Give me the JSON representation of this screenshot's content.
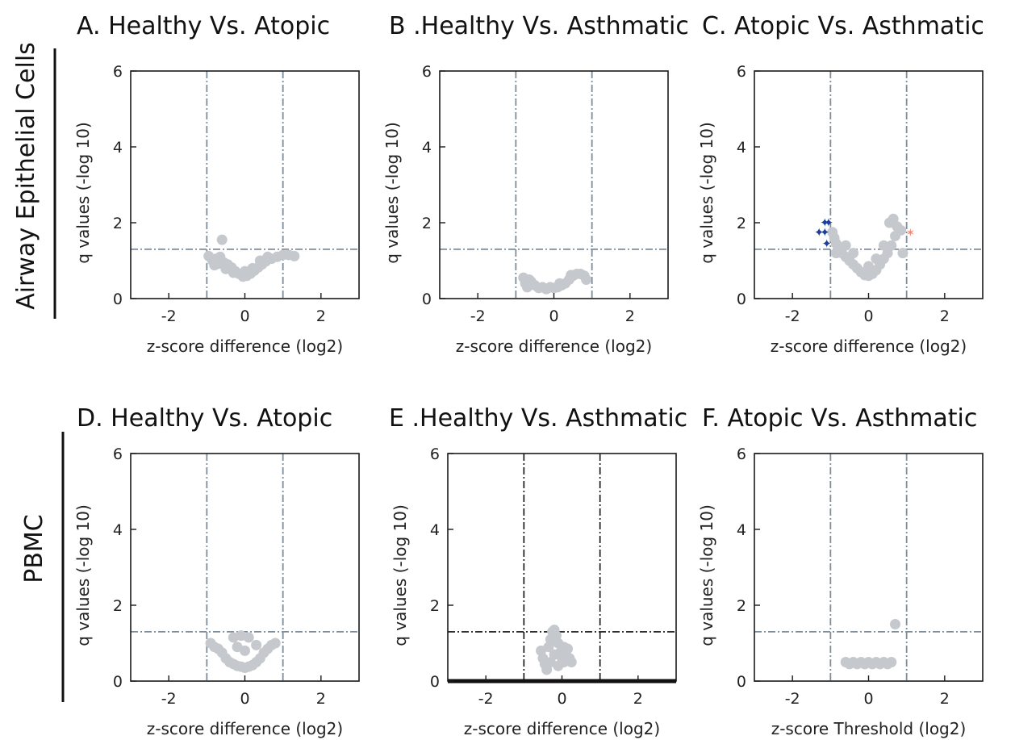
{
  "row_labels": [
    "Airway Epithelial Cells",
    "PBMC"
  ],
  "colors": {
    "point_ns": "#c5c9ce",
    "point_down": "#1f3d9a",
    "point_up": "#f08a74",
    "threshold_line": "#7f8c99",
    "threshold_line_dark": "#111111"
  },
  "chart_data": [
    {
      "type": "scatter",
      "title": "A. Healthy Vs. Atopic",
      "xlabel": "z-score difference (log2)",
      "ylabel": "q values (-log 10)",
      "xlim": [
        -3,
        3
      ],
      "ylim": [
        0,
        6
      ],
      "xticks": [
        "-2",
        "0",
        "2"
      ],
      "yticks": [
        "0",
        "2",
        "4",
        "6"
      ],
      "thresholds": {
        "x": [
          -1,
          1
        ],
        "y": 1.3
      },
      "points": [
        {
          "x": -0.95,
          "y": 1.12
        },
        {
          "x": -0.85,
          "y": 1.0
        },
        {
          "x": -0.75,
          "y": 1.05
        },
        {
          "x": -0.65,
          "y": 1.1
        },
        {
          "x": -0.6,
          "y": 1.55
        },
        {
          "x": -0.55,
          "y": 0.95
        },
        {
          "x": -0.45,
          "y": 0.9
        },
        {
          "x": -0.35,
          "y": 0.82
        },
        {
          "x": -0.25,
          "y": 0.72
        },
        {
          "x": -0.15,
          "y": 0.65
        },
        {
          "x": -0.05,
          "y": 0.58
        },
        {
          "x": 0.05,
          "y": 0.6
        },
        {
          "x": 0.15,
          "y": 0.66
        },
        {
          "x": 0.25,
          "y": 0.74
        },
        {
          "x": 0.35,
          "y": 0.82
        },
        {
          "x": 0.45,
          "y": 0.9
        },
        {
          "x": 0.55,
          "y": 0.98
        },
        {
          "x": 0.7,
          "y": 1.05
        },
        {
          "x": 0.85,
          "y": 1.1
        },
        {
          "x": 1.0,
          "y": 1.15
        },
        {
          "x": 1.15,
          "y": 1.15
        },
        {
          "x": 1.3,
          "y": 1.12
        },
        {
          "x": -0.8,
          "y": 0.88
        },
        {
          "x": -0.5,
          "y": 0.78
        },
        {
          "x": -0.3,
          "y": 0.68
        },
        {
          "x": 0.0,
          "y": 0.72
        },
        {
          "x": 0.2,
          "y": 0.8
        },
        {
          "x": 0.4,
          "y": 1.0
        },
        {
          "x": 0.6,
          "y": 1.1
        },
        {
          "x": -0.7,
          "y": 0.92
        }
      ]
    },
    {
      "type": "scatter",
      "title": "B .Healthy Vs. Asthmatic",
      "xlabel": "z-score difference (log2)",
      "ylabel": "q values (-log 10)",
      "xlim": [
        -3,
        3
      ],
      "ylim": [
        0,
        6
      ],
      "xticks": [
        "-2",
        "0",
        "2"
      ],
      "yticks": [
        "0",
        "2",
        "4",
        "6"
      ],
      "thresholds": {
        "x": [
          -1,
          1
        ],
        "y": 1.3
      },
      "points": [
        {
          "x": -0.8,
          "y": 0.55
        },
        {
          "x": -0.75,
          "y": 0.4
        },
        {
          "x": -0.7,
          "y": 0.3
        },
        {
          "x": -0.6,
          "y": 0.45
        },
        {
          "x": -0.5,
          "y": 0.35
        },
        {
          "x": -0.4,
          "y": 0.28
        },
        {
          "x": -0.3,
          "y": 0.3
        },
        {
          "x": -0.2,
          "y": 0.25
        },
        {
          "x": -0.1,
          "y": 0.3
        },
        {
          "x": 0.0,
          "y": 0.28
        },
        {
          "x": 0.1,
          "y": 0.3
        },
        {
          "x": 0.2,
          "y": 0.35
        },
        {
          "x": 0.3,
          "y": 0.4
        },
        {
          "x": 0.4,
          "y": 0.5
        },
        {
          "x": 0.5,
          "y": 0.6
        },
        {
          "x": 0.6,
          "y": 0.65
        },
        {
          "x": 0.7,
          "y": 0.65
        },
        {
          "x": 0.8,
          "y": 0.6
        },
        {
          "x": 0.85,
          "y": 0.5
        },
        {
          "x": 0.45,
          "y": 0.62
        },
        {
          "x": -0.65,
          "y": 0.5
        },
        {
          "x": 0.15,
          "y": 0.4
        }
      ]
    },
    {
      "type": "scatter",
      "title": "C. Atopic Vs. Asthmatic",
      "xlabel": "z-score difference (log2)",
      "ylabel": "q values (-log 10)",
      "xlim": [
        -3,
        3
      ],
      "ylim": [
        0,
        6
      ],
      "xticks": [
        "-2",
        "0",
        "2"
      ],
      "yticks": [
        "0",
        "2",
        "4",
        "6"
      ],
      "thresholds": {
        "x": [
          -1,
          1
        ],
        "y": 1.3
      },
      "points": [
        {
          "x": -0.95,
          "y": 1.75
        },
        {
          "x": -0.9,
          "y": 1.6
        },
        {
          "x": -0.85,
          "y": 1.45
        },
        {
          "x": -0.8,
          "y": 1.35
        },
        {
          "x": -0.7,
          "y": 1.2
        },
        {
          "x": -0.6,
          "y": 1.1
        },
        {
          "x": -0.5,
          "y": 1.0
        },
        {
          "x": -0.4,
          "y": 0.9
        },
        {
          "x": -0.3,
          "y": 0.8
        },
        {
          "x": -0.2,
          "y": 0.7
        },
        {
          "x": -0.1,
          "y": 0.62
        },
        {
          "x": 0.0,
          "y": 0.6
        },
        {
          "x": 0.1,
          "y": 0.65
        },
        {
          "x": 0.2,
          "y": 0.75
        },
        {
          "x": 0.3,
          "y": 0.9
        },
        {
          "x": 0.4,
          "y": 1.05
        },
        {
          "x": 0.5,
          "y": 1.2
        },
        {
          "x": 0.6,
          "y": 1.4
        },
        {
          "x": 0.7,
          "y": 1.65
        },
        {
          "x": 0.75,
          "y": 1.9
        },
        {
          "x": 0.65,
          "y": 2.1
        },
        {
          "x": 0.55,
          "y": 2.0
        },
        {
          "x": 0.85,
          "y": 1.8
        },
        {
          "x": 0.9,
          "y": 1.2
        },
        {
          "x": -0.85,
          "y": 1.2
        },
        {
          "x": -0.6,
          "y": 1.4
        },
        {
          "x": -0.4,
          "y": 1.2
        },
        {
          "x": 0.2,
          "y": 1.05
        },
        {
          "x": 0.4,
          "y": 1.4
        },
        {
          "x": 0.0,
          "y": 0.85
        }
      ],
      "down_points": [
        {
          "x": -1.15,
          "y": 2.0
        },
        {
          "x": -1.05,
          "y": 2.0
        },
        {
          "x": -1.3,
          "y": 1.75
        },
        {
          "x": -1.15,
          "y": 1.75
        },
        {
          "x": -1.1,
          "y": 1.45
        }
      ],
      "up_points": [
        {
          "x": 1.1,
          "y": 1.75
        }
      ]
    },
    {
      "type": "scatter",
      "title": "D. Healthy Vs. Atopic",
      "xlabel": "z-score difference (log2)",
      "ylabel": "q values (-log 10)",
      "xlim": [
        -3,
        3
      ],
      "ylim": [
        0,
        6
      ],
      "xticks": [
        "-2",
        "0",
        "2"
      ],
      "yticks": [
        "0",
        "2",
        "4",
        "6"
      ],
      "thresholds": {
        "x": [
          -1,
          1
        ],
        "y": 1.3
      },
      "points": [
        {
          "x": -0.9,
          "y": 1.0
        },
        {
          "x": -0.8,
          "y": 0.9
        },
        {
          "x": -0.7,
          "y": 0.85
        },
        {
          "x": -0.6,
          "y": 0.75
        },
        {
          "x": -0.5,
          "y": 0.6
        },
        {
          "x": -0.4,
          "y": 0.5
        },
        {
          "x": -0.3,
          "y": 0.45
        },
        {
          "x": -0.2,
          "y": 0.4
        },
        {
          "x": -0.1,
          "y": 0.38
        },
        {
          "x": 0.0,
          "y": 0.35
        },
        {
          "x": 0.1,
          "y": 0.38
        },
        {
          "x": 0.2,
          "y": 0.42
        },
        {
          "x": 0.3,
          "y": 0.5
        },
        {
          "x": 0.4,
          "y": 0.6
        },
        {
          "x": 0.5,
          "y": 0.75
        },
        {
          "x": 0.6,
          "y": 0.85
        },
        {
          "x": 0.7,
          "y": 0.95
        },
        {
          "x": 0.8,
          "y": 1.0
        },
        {
          "x": -0.3,
          "y": 1.15
        },
        {
          "x": -0.1,
          "y": 1.2
        },
        {
          "x": 0.1,
          "y": 1.15
        },
        {
          "x": 0.0,
          "y": 0.8
        },
        {
          "x": -0.2,
          "y": 0.9
        },
        {
          "x": 0.3,
          "y": 0.95
        }
      ]
    },
    {
      "type": "scatter",
      "title": "E .Healthy Vs. Asthmatic",
      "xlabel": "z-score difference (log2)",
      "ylabel": "q values (-log 10)",
      "xlim": [
        -3,
        3
      ],
      "ylim": [
        0,
        6
      ],
      "xticks": [
        "-2",
        "0",
        "2"
      ],
      "yticks": [
        "0",
        "2",
        "4",
        "6"
      ],
      "thresholds": {
        "x": [
          -1,
          1
        ],
        "y": 1.3
      },
      "dark_thresholds": true,
      "points": [
        {
          "x": -0.55,
          "y": 0.8
        },
        {
          "x": -0.5,
          "y": 0.6
        },
        {
          "x": -0.45,
          "y": 0.45
        },
        {
          "x": -0.4,
          "y": 0.3
        },
        {
          "x": -0.35,
          "y": 0.9
        },
        {
          "x": -0.3,
          "y": 1.1
        },
        {
          "x": -0.25,
          "y": 1.3
        },
        {
          "x": -0.2,
          "y": 1.35
        },
        {
          "x": -0.15,
          "y": 1.2
        },
        {
          "x": -0.1,
          "y": 1.0
        },
        {
          "x": -0.05,
          "y": 0.75
        },
        {
          "x": 0.0,
          "y": 0.6
        },
        {
          "x": 0.05,
          "y": 0.5
        },
        {
          "x": 0.1,
          "y": 0.7
        },
        {
          "x": 0.15,
          "y": 0.85
        },
        {
          "x": 0.2,
          "y": 0.6
        },
        {
          "x": 0.25,
          "y": 0.5
        },
        {
          "x": -0.3,
          "y": 0.5
        },
        {
          "x": -0.2,
          "y": 0.7
        },
        {
          "x": -0.1,
          "y": 0.4
        },
        {
          "x": 0.05,
          "y": 0.9
        }
      ]
    },
    {
      "type": "scatter",
      "title": "F. Atopic Vs. Asthmatic",
      "xlabel": "z-score Threshold (log2)",
      "ylabel": "q values (-log 10)",
      "xlim": [
        -3,
        3
      ],
      "ylim": [
        0,
        6
      ],
      "xticks": [
        "-2",
        "0",
        "2"
      ],
      "yticks": [
        "0",
        "2",
        "4",
        "6"
      ],
      "thresholds": {
        "x": [
          -1,
          1
        ],
        "y": 1.3
      },
      "points": [
        {
          "x": -0.6,
          "y": 0.5
        },
        {
          "x": -0.5,
          "y": 0.45
        },
        {
          "x": -0.4,
          "y": 0.5
        },
        {
          "x": -0.3,
          "y": 0.45
        },
        {
          "x": -0.2,
          "y": 0.5
        },
        {
          "x": -0.1,
          "y": 0.45
        },
        {
          "x": 0.0,
          "y": 0.5
        },
        {
          "x": 0.1,
          "y": 0.45
        },
        {
          "x": 0.2,
          "y": 0.5
        },
        {
          "x": 0.3,
          "y": 0.45
        },
        {
          "x": 0.4,
          "y": 0.5
        },
        {
          "x": 0.5,
          "y": 0.45
        },
        {
          "x": 0.6,
          "y": 0.5
        },
        {
          "x": 0.7,
          "y": 1.5
        }
      ]
    }
  ]
}
